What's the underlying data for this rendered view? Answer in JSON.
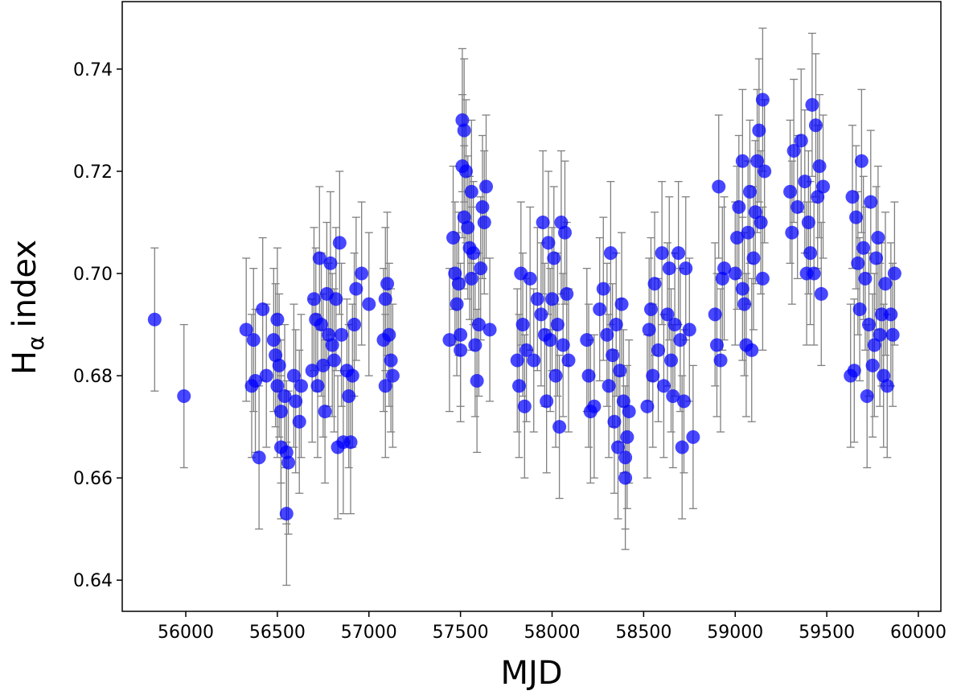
{
  "chart_data": {
    "type": "scatter",
    "xlabel": "MJD",
    "ylabel": "H",
    "ylabel_sub": "α",
    "ylabel_rest": "index",
    "xlim": [
      55653,
      60123
    ],
    "ylim": [
      0.6339,
      0.7532
    ],
    "xticks": [
      56000,
      56500,
      57000,
      57500,
      58000,
      58500,
      59000,
      59500,
      60000
    ],
    "yticks": [
      0.64,
      0.66,
      0.68,
      {
        "value": 0.7,
        "label": "0.70"
      },
      0.72,
      0.74
    ],
    "series": [
      {
        "color": "#0000ff",
        "error_color": "#808080",
        "x": [
          55830,
          55990,
          56330,
          56360,
          56370,
          56380,
          56400,
          56420,
          56440,
          56480,
          56490,
          56500,
          56500,
          56510,
          56520,
          56520,
          56540,
          56550,
          56550,
          56560,
          56590,
          56600,
          56620,
          56630,
          56690,
          56700,
          56710,
          56720,
          56730,
          56740,
          56750,
          56760,
          56770,
          56780,
          56790,
          56800,
          56810,
          56820,
          56830,
          56840,
          56850,
          56860,
          56880,
          56890,
          56900,
          56910,
          56920,
          56930,
          56960,
          57000,
          57080,
          57090,
          57090,
          57100,
          57110,
          57120,
          57130,
          57440,
          57460,
          57470,
          57480,
          57490,
          57500,
          57500,
          57510,
          57510,
          57520,
          57520,
          57530,
          57540,
          57550,
          57560,
          57560,
          57570,
          57580,
          57590,
          57600,
          57610,
          57620,
          57630,
          57640,
          57660,
          57810,
          57820,
          57830,
          57840,
          57850,
          57860,
          57880,
          57900,
          57920,
          57940,
          57950,
          57960,
          57970,
          57980,
          57990,
          58000,
          58010,
          58020,
          58030,
          58040,
          58050,
          58060,
          58070,
          58080,
          58090,
          58190,
          58200,
          58210,
          58230,
          58260,
          58280,
          58300,
          58310,
          58320,
          58330,
          58340,
          58350,
          58360,
          58370,
          58380,
          58390,
          58400,
          58410,
          58420,
          58400,
          58520,
          58530,
          58540,
          58550,
          58560,
          58580,
          58600,
          58610,
          58630,
          58640,
          58650,
          58660,
          58670,
          58690,
          58700,
          58710,
          58720,
          58730,
          58750,
          58770,
          58890,
          58900,
          58910,
          58920,
          58930,
          58940,
          59000,
          59010,
          59020,
          59040,
          59040,
          59050,
          59060,
          59070,
          59080,
          59090,
          59100,
          59110,
          59120,
          59130,
          59140,
          59150,
          59150,
          59160,
          59300,
          59310,
          59320,
          59340,
          59360,
          59380,
          59390,
          59400,
          59410,
          59420,
          59430,
          59440,
          59450,
          59460,
          59470,
          59480,
          59630,
          59640,
          59650,
          59660,
          59670,
          59680,
          59690,
          59700,
          59710,
          59720,
          59730,
          59740,
          59750,
          59760,
          59770,
          59780,
          59790,
          59800,
          59810,
          59820,
          59830,
          59850,
          59860,
          59870
        ],
        "values": [
          0.691,
          0.676,
          0.689,
          0.678,
          0.687,
          0.679,
          0.664,
          0.693,
          0.68,
          0.687,
          0.684,
          0.691,
          0.678,
          0.682,
          0.673,
          0.666,
          0.676,
          0.665,
          0.653,
          0.663,
          0.68,
          0.675,
          0.671,
          0.678,
          0.681,
          0.695,
          0.691,
          0.678,
          0.703,
          0.69,
          0.682,
          0.673,
          0.696,
          0.688,
          0.702,
          0.686,
          0.683,
          0.695,
          0.666,
          0.706,
          0.688,
          0.667,
          0.681,
          0.676,
          0.667,
          0.68,
          0.69,
          0.697,
          0.7,
          0.694,
          0.687,
          0.678,
          0.695,
          0.698,
          0.688,
          0.683,
          0.68,
          0.687,
          0.707,
          0.7,
          0.694,
          0.698,
          0.688,
          0.685,
          0.721,
          0.73,
          0.728,
          0.711,
          0.72,
          0.709,
          0.705,
          0.716,
          0.699,
          0.704,
          0.686,
          0.679,
          0.69,
          0.701,
          0.713,
          0.71,
          0.717,
          0.689,
          0.683,
          0.678,
          0.7,
          0.69,
          0.674,
          0.685,
          0.699,
          0.683,
          0.695,
          0.692,
          0.71,
          0.688,
          0.675,
          0.706,
          0.687,
          0.695,
          0.703,
          0.68,
          0.69,
          0.67,
          0.71,
          0.686,
          0.708,
          0.696,
          0.683,
          0.687,
          0.68,
          0.673,
          0.674,
          0.693,
          0.697,
          0.688,
          0.678,
          0.704,
          0.684,
          0.671,
          0.69,
          0.666,
          0.681,
          0.694,
          0.675,
          0.66,
          0.668,
          0.673,
          0.664,
          0.674,
          0.689,
          0.693,
          0.68,
          0.698,
          0.685,
          0.704,
          0.678,
          0.692,
          0.701,
          0.683,
          0.676,
          0.69,
          0.704,
          0.687,
          0.666,
          0.675,
          0.701,
          0.689,
          0.668,
          0.692,
          0.686,
          0.717,
          0.683,
          0.699,
          0.701,
          0.7,
          0.707,
          0.713,
          0.722,
          0.697,
          0.694,
          0.686,
          0.708,
          0.716,
          0.685,
          0.703,
          0.712,
          0.722,
          0.728,
          0.71,
          0.734,
          0.699,
          0.72,
          0.716,
          0.708,
          0.724,
          0.713,
          0.726,
          0.718,
          0.7,
          0.71,
          0.704,
          0.733,
          0.7,
          0.729,
          0.715,
          0.721,
          0.696,
          0.717,
          0.68,
          0.715,
          0.681,
          0.711,
          0.702,
          0.693,
          0.722,
          0.705,
          0.699,
          0.676,
          0.69,
          0.714,
          0.682,
          0.686,
          0.703,
          0.707,
          0.688,
          0.692,
          0.68,
          0.698,
          0.678,
          0.692,
          0.688,
          0.7
        ],
        "errors": [
          0.014,
          0.014,
          0.014,
          0.014,
          0.014,
          0.014,
          0.014,
          0.014,
          0.014,
          0.014,
          0.014,
          0.014,
          0.014,
          0.014,
          0.014,
          0.014,
          0.014,
          0.014,
          0.014,
          0.014,
          0.014,
          0.014,
          0.014,
          0.014,
          0.014,
          0.014,
          0.014,
          0.014,
          0.014,
          0.014,
          0.014,
          0.014,
          0.014,
          0.014,
          0.014,
          0.014,
          0.014,
          0.014,
          0.014,
          0.014,
          0.014,
          0.014,
          0.014,
          0.014,
          0.014,
          0.014,
          0.014,
          0.014,
          0.014,
          0.014,
          0.014,
          0.014,
          0.014,
          0.014,
          0.014,
          0.014,
          0.014,
          0.014,
          0.014,
          0.014,
          0.014,
          0.014,
          0.014,
          0.014,
          0.014,
          0.014,
          0.014,
          0.014,
          0.014,
          0.014,
          0.014,
          0.014,
          0.014,
          0.014,
          0.014,
          0.014,
          0.014,
          0.014,
          0.014,
          0.014,
          0.014,
          0.014,
          0.014,
          0.014,
          0.014,
          0.014,
          0.014,
          0.014,
          0.014,
          0.014,
          0.014,
          0.014,
          0.014,
          0.014,
          0.014,
          0.014,
          0.014,
          0.014,
          0.014,
          0.014,
          0.014,
          0.014,
          0.014,
          0.014,
          0.014,
          0.014,
          0.014,
          0.014,
          0.014,
          0.014,
          0.014,
          0.014,
          0.014,
          0.014,
          0.014,
          0.014,
          0.014,
          0.014,
          0.014,
          0.014,
          0.014,
          0.014,
          0.014,
          0.014,
          0.014,
          0.014,
          0.014,
          0.014,
          0.014,
          0.014,
          0.014,
          0.014,
          0.014,
          0.014,
          0.014,
          0.014,
          0.014,
          0.014,
          0.014,
          0.014,
          0.014,
          0.014,
          0.014,
          0.014,
          0.014,
          0.014,
          0.014,
          0.014,
          0.014,
          0.014,
          0.014,
          0.014,
          0.014,
          0.014,
          0.014,
          0.014,
          0.014,
          0.014,
          0.014,
          0.014,
          0.014,
          0.014,
          0.014,
          0.014,
          0.014,
          0.014,
          0.014,
          0.014,
          0.014,
          0.014,
          0.014,
          0.014,
          0.014,
          0.014,
          0.014,
          0.014,
          0.014,
          0.014,
          0.014,
          0.014,
          0.014,
          0.014,
          0.014,
          0.014,
          0.014,
          0.014,
          0.014,
          0.014,
          0.014,
          0.014,
          0.014,
          0.014,
          0.014,
          0.014,
          0.014,
          0.014,
          0.014,
          0.014,
          0.014,
          0.014,
          0.014,
          0.014,
          0.014,
          0.014,
          0.014,
          0.014,
          0.014,
          0.014,
          0.014,
          0.014,
          0.014
        ]
      }
    ]
  }
}
